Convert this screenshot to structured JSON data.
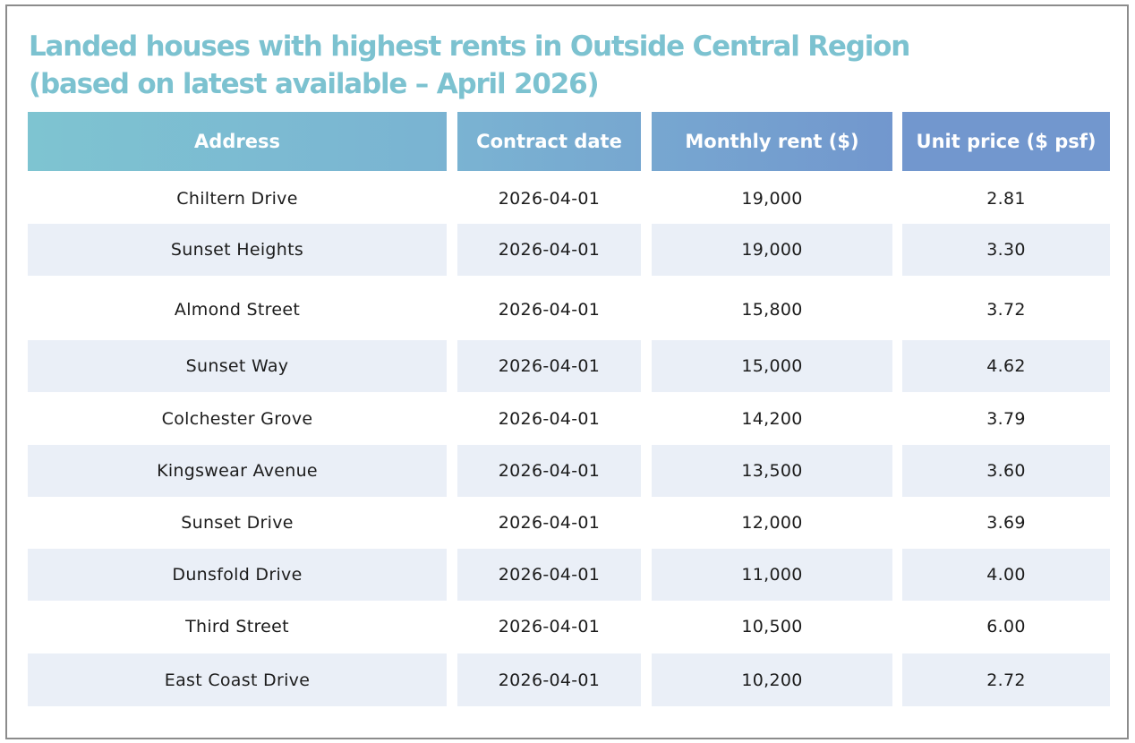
{
  "title_lines": [
    "Landed houses with highest rents in Outside Central Region",
    "(based on latest available – April 2026)"
  ],
  "colors": {
    "title": "#7cc2d0",
    "header_gradient": [
      "#7ec4d1",
      "#7ab3d2",
      "#77a7d0",
      "#7297ce"
    ],
    "row_shade": "#eaeff7",
    "frame_border": "#8c8c8c",
    "text": "#1c1c1c"
  },
  "chart_data": {
    "type": "table",
    "title": "Landed houses with highest rents in Outside Central Region (based on latest available – April 2026)",
    "columns": [
      "Address",
      "Contract date",
      "Monthly rent ($)",
      "Unit price ($ psf)"
    ],
    "rows": [
      [
        "Chiltern Drive",
        "2026-04-01",
        "19,000",
        "2.81"
      ],
      [
        "Sunset Heights",
        "2026-04-01",
        "19,000",
        "3.30"
      ],
      [
        "Almond Street",
        "2026-04-01",
        "15,800",
        "3.72"
      ],
      [
        "Sunset Way",
        "2026-04-01",
        "15,000",
        "4.62"
      ],
      [
        "Colchester Grove",
        "2026-04-01",
        "14,200",
        "3.79"
      ],
      [
        "Kingswear Avenue",
        "2026-04-01",
        "13,500",
        "3.60"
      ],
      [
        "Sunset Drive",
        "2026-04-01",
        "12,000",
        "3.69"
      ],
      [
        "Dunsfold Drive",
        "2026-04-01",
        "11,000",
        "4.00"
      ],
      [
        "Third Street",
        "2026-04-01",
        "10,500",
        "6.00"
      ],
      [
        "East Coast Drive",
        "2026-04-01",
        "10,200",
        "2.72"
      ]
    ]
  }
}
